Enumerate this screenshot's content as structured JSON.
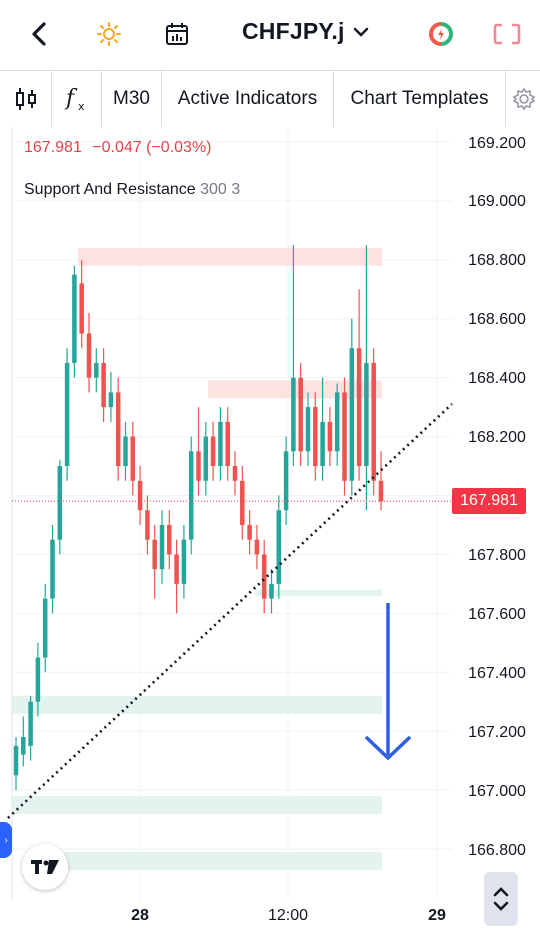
{
  "header": {
    "back_icon": "chevron-left-icon",
    "theme_icon": "sun-icon",
    "calendar_icon": "calendar-icon",
    "symbol": "CHFJPY.j",
    "symbol_dropdown_icon": "chevron-down-icon",
    "logo_icon": "brand-logo-icon",
    "layout_icon": "fullscreen-icon"
  },
  "toolbar": {
    "candle_icon": "candlestick-icon",
    "fx_icon": "fx-icon",
    "timeframe": "M30",
    "indicators": "Active Indicators",
    "templates": "Chart Templates",
    "settings_icon": "gear-icon"
  },
  "legend": {
    "price": "167.981",
    "change": "−0.047 (−0.03%)",
    "indicator_name": "Support And Resistance",
    "indicator_params": "300 3"
  },
  "price_axis": {
    "labels": [
      "169.200",
      "169.000",
      "168.800",
      "168.600",
      "168.400",
      "168.200",
      "167.800",
      "167.600",
      "167.400",
      "167.200",
      "167.000",
      "166.800"
    ],
    "current_price": "167.981"
  },
  "time_axis": {
    "labels": [
      "28",
      "12:00",
      "29"
    ]
  },
  "colors": {
    "bull": "#26a69a",
    "bear": "#ef5350",
    "resistance_zone": "#fde2e2",
    "support_zone": "#e3f3ef",
    "arrow": "#2f5fe0",
    "price_tag": "#f23645"
  },
  "chart_data": {
    "type": "candlestick",
    "y_range": [
      166.7,
      169.25
    ],
    "current_price": 167.981,
    "resistance_zones": [
      [
        168.78,
        168.84
      ],
      [
        168.33,
        168.39
      ]
    ],
    "support_zones": [
      [
        167.66,
        167.68
      ],
      [
        167.26,
        167.32
      ],
      [
        166.93,
        166.98
      ],
      [
        166.73,
        166.79
      ]
    ],
    "candles": [
      [
        167.05,
        167.15,
        167.0,
        167.18
      ],
      [
        167.12,
        167.18,
        167.08,
        167.25
      ],
      [
        167.15,
        167.3,
        167.1,
        167.32
      ],
      [
        167.3,
        167.45,
        167.25,
        167.5
      ],
      [
        167.45,
        167.65,
        167.4,
        167.7
      ],
      [
        167.65,
        167.85,
        167.6,
        167.9
      ],
      [
        167.85,
        168.1,
        167.8,
        168.12
      ],
      [
        168.1,
        168.45,
        168.05,
        168.5
      ],
      [
        168.45,
        168.75,
        168.4,
        168.78
      ],
      [
        168.72,
        168.55,
        168.5,
        168.8
      ],
      [
        168.55,
        168.4,
        168.35,
        168.62
      ],
      [
        168.4,
        168.45,
        168.35,
        168.5
      ],
      [
        168.45,
        168.3,
        168.25,
        168.5
      ],
      [
        168.3,
        168.35,
        168.25,
        168.42
      ],
      [
        168.35,
        168.1,
        168.05,
        168.4
      ],
      [
        168.1,
        168.2,
        168.05,
        168.25
      ],
      [
        168.2,
        168.05,
        168.0,
        168.25
      ],
      [
        168.05,
        167.95,
        167.9,
        168.1
      ],
      [
        167.95,
        167.85,
        167.8,
        168.0
      ],
      [
        167.85,
        167.75,
        167.65,
        167.9
      ],
      [
        167.75,
        167.9,
        167.7,
        167.95
      ],
      [
        167.9,
        167.8,
        167.75,
        167.95
      ],
      [
        167.8,
        167.7,
        167.6,
        167.85
      ],
      [
        167.7,
        167.85,
        167.65,
        167.9
      ],
      [
        167.85,
        168.15,
        167.8,
        168.2
      ],
      [
        168.15,
        168.05,
        168.0,
        168.3
      ],
      [
        168.05,
        168.2,
        168.0,
        168.25
      ],
      [
        168.2,
        168.1,
        168.05,
        168.25
      ],
      [
        168.1,
        168.25,
        168.05,
        168.3
      ],
      [
        168.25,
        168.1,
        168.05,
        168.3
      ],
      [
        168.1,
        168.05,
        168.0,
        168.15
      ],
      [
        168.05,
        167.9,
        167.85,
        168.1
      ],
      [
        167.9,
        167.85,
        167.8,
        167.95
      ],
      [
        167.85,
        167.8,
        167.75,
        167.9
      ],
      [
        167.8,
        167.65,
        167.6,
        167.85
      ],
      [
        167.65,
        167.7,
        167.6,
        167.75
      ],
      [
        167.7,
        167.95,
        167.65,
        168.0
      ],
      [
        167.95,
        168.15,
        167.9,
        168.2
      ],
      [
        168.15,
        168.4,
        168.1,
        168.85
      ],
      [
        168.4,
        168.15,
        168.1,
        168.45
      ],
      [
        168.15,
        168.3,
        168.1,
        168.35
      ],
      [
        168.3,
        168.1,
        168.05,
        168.35
      ],
      [
        168.1,
        168.25,
        168.05,
        168.4
      ],
      [
        168.25,
        168.15,
        168.1,
        168.3
      ],
      [
        168.15,
        168.35,
        168.1,
        168.38
      ],
      [
        168.35,
        168.05,
        168.0,
        168.4
      ],
      [
        168.05,
        168.5,
        168.0,
        168.6
      ],
      [
        168.5,
        168.1,
        168.05,
        168.7
      ],
      [
        168.1,
        168.45,
        167.95,
        168.85
      ],
      [
        168.45,
        168.05,
        168.0,
        168.5
      ],
      [
        168.05,
        167.98,
        167.95,
        168.15
      ]
    ]
  }
}
